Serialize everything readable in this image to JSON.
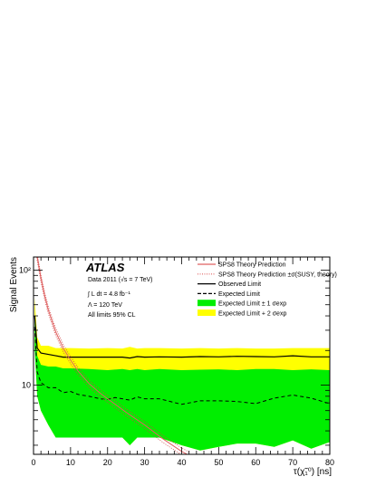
{
  "chart_data": {
    "type": "line",
    "x_label": "τ(χ̃₁⁰) [ns]",
    "y_label": "Signal Events",
    "x_range": [
      0,
      80
    ],
    "y_range": [
      2.5,
      130
    ],
    "y_scale": "log",
    "x_tick_labels": [
      "0",
      "10",
      "20",
      "30",
      "40",
      "50",
      "60",
      "70",
      "80"
    ],
    "y_tick_labels": [
      "10",
      "10²"
    ],
    "experiment": "ATLAS",
    "info_lines": [
      "Data 2011 (√s = 7 TeV)",
      "∫ L dt = 4.8 fb⁻¹",
      "Λ = 120 TeV",
      "All limits 95% CL"
    ],
    "legend": [
      {
        "label": "SPS8 Theory Prediction",
        "style": "solid",
        "color": "#e06060"
      },
      {
        "label": "SPS8 Theory Prediction ±σ(SUSY, theory)",
        "style": "dotted",
        "color": "#e06060"
      },
      {
        "label": "Observed Limit",
        "style": "solid",
        "color": "#000000"
      },
      {
        "label": "Expected Limit",
        "style": "dashed",
        "color": "#000000"
      },
      {
        "label": "Expected Limit ± 1 σexp",
        "style": "fill",
        "color": "#00ee00"
      },
      {
        "label": "Expected Limit + 2 σexp",
        "style": "fill",
        "color": "#ffff00"
      }
    ],
    "series": [
      {
        "name": "Observed Limit",
        "x": [
          0.3,
          1,
          2,
          4,
          6,
          8,
          10,
          12,
          15,
          18,
          20,
          24,
          26,
          28,
          30,
          34,
          40,
          45,
          50,
          55,
          60,
          65,
          70,
          75,
          80
        ],
        "y": [
          40,
          21,
          19,
          18.5,
          18,
          17.5,
          17.5,
          17.5,
          17.5,
          17.5,
          17.5,
          17.5,
          17.2,
          17.7,
          17.5,
          17.6,
          17.5,
          17.7,
          17.6,
          17.8,
          17.7,
          17.6,
          18,
          17.6,
          17.6
        ]
      },
      {
        "name": "Expected Limit",
        "x": [
          0.3,
          1,
          2,
          4,
          6,
          8,
          10,
          12,
          15,
          18,
          20,
          22,
          24,
          26,
          28,
          30,
          34,
          40,
          45,
          50,
          55,
          60,
          65,
          70,
          75,
          80
        ],
        "y": [
          32,
          13,
          10.5,
          9.5,
          9.5,
          8.6,
          8.8,
          8.3,
          8,
          7.6,
          7.5,
          7.8,
          7.6,
          7.4,
          7.9,
          7.6,
          7.6,
          6.8,
          7.3,
          7.3,
          7.2,
          6.9,
          7.7,
          8.2,
          7.7,
          6.9
        ]
      },
      {
        "name": "Expected Limit ± 1 σexp",
        "x": [
          0.3,
          1,
          2,
          4,
          6,
          8,
          10,
          15,
          20,
          24,
          26,
          28,
          30,
          34,
          40,
          45,
          50,
          55,
          60,
          65,
          70,
          75,
          80
        ],
        "y_low": [
          21,
          8,
          6,
          4.5,
          3.5,
          3.5,
          3.5,
          3.5,
          3.5,
          3.5,
          3,
          3.5,
          3.5,
          3.5,
          3,
          2.7,
          2.9,
          3.1,
          3.1,
          2.9,
          3.3,
          2.8,
          3.2
        ],
        "y_high": [
          40,
          18,
          15,
          14.5,
          14.5,
          14,
          14,
          13.8,
          13.5,
          13.8,
          13.5,
          13.8,
          13.5,
          13.8,
          13.5,
          13.6,
          13.7,
          13.5,
          13.8,
          13.8,
          13.5,
          13.7,
          13.5
        ]
      },
      {
        "name": "Expected Limit + 2 σexp",
        "x": [
          0.3,
          1,
          2,
          4,
          6,
          8,
          10,
          15,
          20,
          24,
          26,
          28,
          30,
          34,
          40,
          45,
          50,
          55,
          60,
          65,
          70,
          75,
          80
        ],
        "y_high": [
          58,
          26,
          22,
          22,
          21,
          21,
          21,
          20.8,
          21,
          20.8,
          21.5,
          20.8,
          21,
          21,
          20.8,
          21,
          20.8,
          21,
          20.8,
          20.8,
          21,
          21,
          21
        ]
      },
      {
        "name": "SPS8 Theory Prediction",
        "x": [
          0.5,
          1,
          2,
          3,
          4,
          5,
          6,
          8,
          10,
          12,
          15,
          18,
          20,
          25,
          30,
          35,
          40,
          42
        ],
        "y": [
          190,
          130,
          85,
          60,
          45,
          36,
          29,
          21,
          16.5,
          13.3,
          10.3,
          8.5,
          7.6,
          5.8,
          4.5,
          3.4,
          2.65,
          2.45
        ]
      }
    ],
    "theory_band_fraction": 0.07
  }
}
